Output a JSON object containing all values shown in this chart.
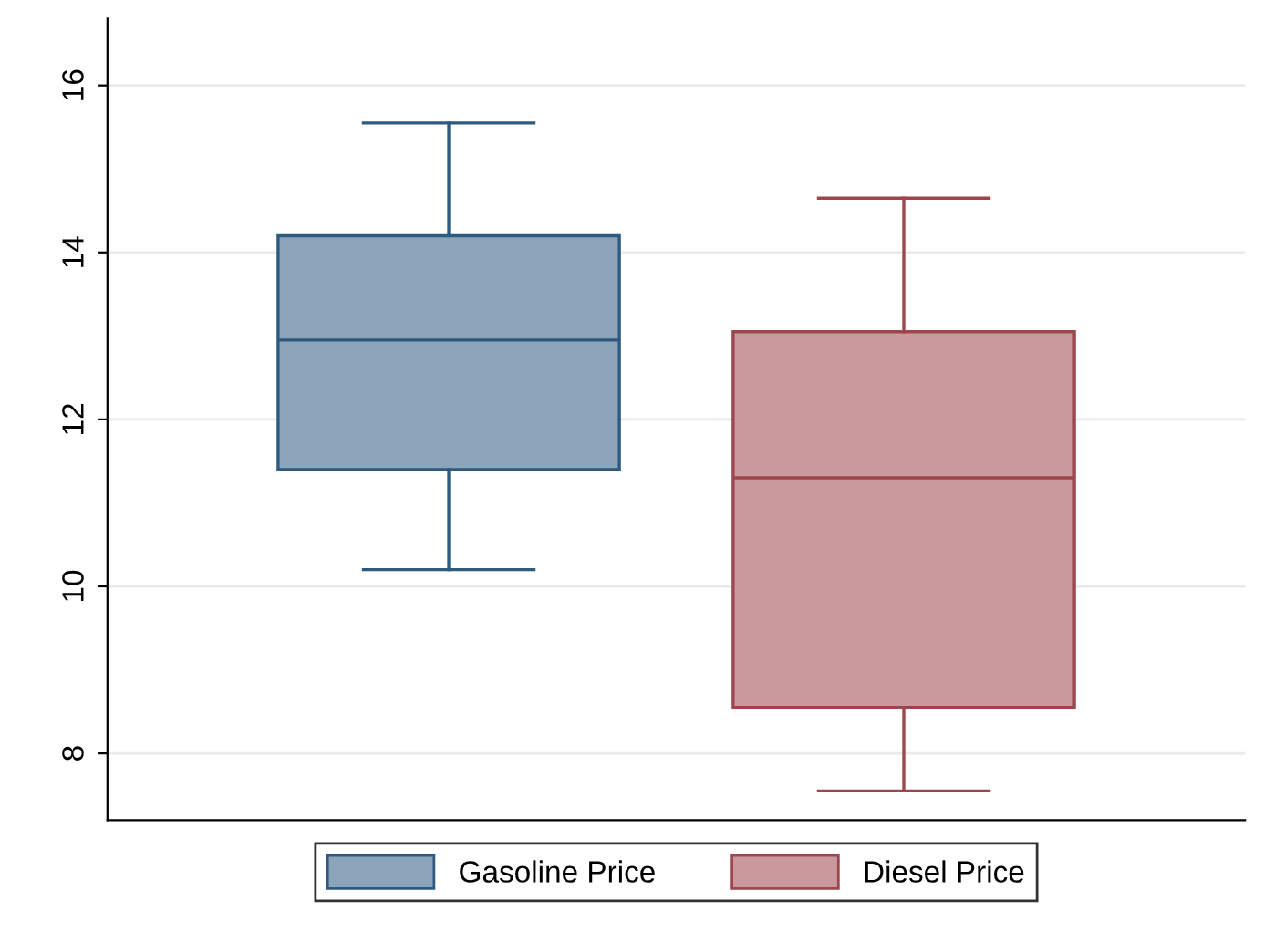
{
  "chart_data": {
    "type": "box",
    "categories": [
      null
    ],
    "series": [
      {
        "name": "Gasoline Price",
        "color": "#8ca4b9",
        "boxes": [
          {
            "low": 10.2,
            "q1": 11.4,
            "median": 12.95,
            "q3": 14.2,
            "high": 15.55
          }
        ]
      },
      {
        "name": "Diesel Price",
        "color": "#c9999d",
        "boxes": [
          {
            "low": 7.55,
            "q1": 8.55,
            "median": 11.3,
            "q3": 13.05,
            "high": 14.65
          }
        ]
      }
    ],
    "ylim": [
      7.2,
      16.8
    ],
    "yticks": [
      8,
      10,
      12,
      14,
      16
    ],
    "grid": "y",
    "legend": "bottom"
  }
}
